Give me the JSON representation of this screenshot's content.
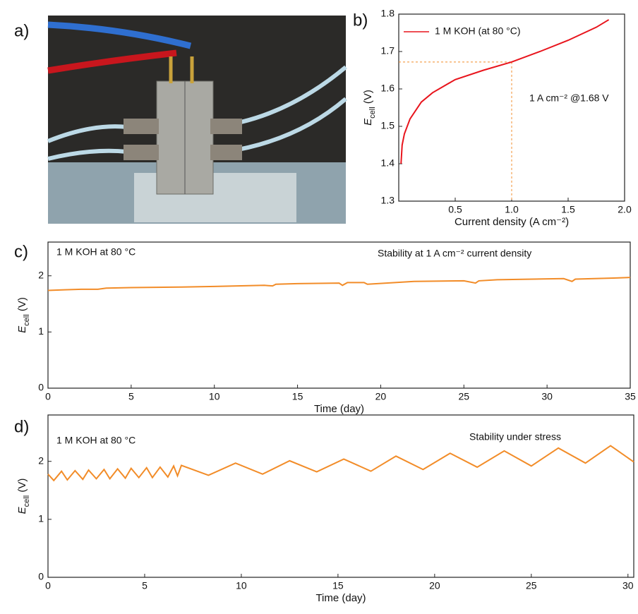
{
  "panel_labels": [
    "a)",
    "b)",
    "c)",
    "d)"
  ],
  "chart_data": [
    {
      "type": "line",
      "xlabel": "Current density (A cm⁻²)",
      "ylabel": [
        "E",
        "cell",
        " (V)"
      ],
      "annotation": "1 A cm⁻² @1.68 V",
      "x": [
        0.02,
        0.03,
        0.05,
        0.1,
        0.2,
        0.3,
        0.5,
        0.75,
        1.0,
        1.25,
        1.5,
        1.75,
        1.86
      ],
      "series": [
        {
          "name": "1 M KOH (at 80 °C)",
          "color": "#e8141c",
          "values": [
            1.4,
            1.45,
            1.48,
            1.52,
            1.565,
            1.59,
            1.625,
            1.65,
            1.672,
            1.7,
            1.73,
            1.765,
            1.785
          ]
        }
      ],
      "marker": {
        "x": 1.0,
        "y": 1.672,
        "color": "#f28c28"
      },
      "xlim": [
        0,
        2
      ],
      "ylim": [
        1.3,
        1.8
      ],
      "xticks": [
        0.5,
        {
          "value": 1.0,
          "label": "1.0"
        },
        1.5,
        {
          "value": 2.0,
          "label": "2.0"
        }
      ],
      "yticks": [
        1.3,
        1.4,
        1.5,
        1.6,
        1.7,
        1.8
      ]
    },
    {
      "type": "line",
      "xlabel": "Time (day)",
      "ylabel": [
        "E",
        "cell",
        " (V)"
      ],
      "annotations": [
        "1 M KOH at 80 °C",
        "Stability at 1 A cm⁻² current density"
      ],
      "x": [
        0,
        1,
        2,
        3,
        3.5,
        5,
        8,
        10,
        13,
        13.5,
        13.7,
        15,
        17.5,
        17.7,
        18,
        19,
        19.2,
        22,
        25,
        25.7,
        25.9,
        27,
        31,
        31.5,
        31.7,
        34,
        35
      ],
      "series": [
        {
          "color": "#f28c28",
          "values": [
            1.74,
            1.75,
            1.76,
            1.76,
            1.78,
            1.79,
            1.8,
            1.81,
            1.83,
            1.82,
            1.85,
            1.86,
            1.87,
            1.83,
            1.88,
            1.88,
            1.85,
            1.9,
            1.91,
            1.87,
            1.91,
            1.93,
            1.95,
            1.9,
            1.94,
            1.96,
            1.97
          ]
        }
      ],
      "xlim": [
        0,
        35
      ],
      "ylim": [
        0,
        2.6
      ],
      "xticks": [
        0,
        5,
        10,
        15,
        20,
        25,
        30,
        35
      ],
      "yticks": [
        0,
        1,
        2
      ]
    },
    {
      "type": "line",
      "xlabel": "Time (day)",
      "ylabel": [
        "E",
        "cell",
        " (V)"
      ],
      "annotations": [
        "1 M KOH at 80 °C",
        "Stability under stress"
      ],
      "x": [
        0,
        0.3,
        0.7,
        1.0,
        1.4,
        1.8,
        2.1,
        2.5,
        2.9,
        3.2,
        3.6,
        4.0,
        4.3,
        4.7,
        5.1,
        5.4,
        5.8,
        6.2,
        6.5,
        6.7,
        6.9,
        8.3,
        9.7,
        11.1,
        12.5,
        13.9,
        15.3,
        16.7,
        18.0,
        19.4,
        20.8,
        22.2,
        23.6,
        25.0,
        26.4,
        27.8,
        29.1,
        30.3
      ],
      "series": [
        {
          "color": "#f28c28",
          "values": [
            1.78,
            1.67,
            1.83,
            1.68,
            1.84,
            1.69,
            1.85,
            1.7,
            1.86,
            1.7,
            1.87,
            1.71,
            1.88,
            1.72,
            1.89,
            1.72,
            1.9,
            1.73,
            1.92,
            1.75,
            1.93,
            1.76,
            1.97,
            1.78,
            2.01,
            1.82,
            2.04,
            1.83,
            2.09,
            1.86,
            2.14,
            1.9,
            2.18,
            1.92,
            2.23,
            1.97,
            2.27,
            1.99
          ]
        }
      ],
      "xlim": [
        0,
        30.3
      ],
      "ylim": [
        0,
        2.8
      ],
      "xticks": [
        0,
        5,
        10,
        15,
        20,
        25,
        30
      ],
      "yticks": [
        0,
        1,
        2
      ]
    }
  ]
}
